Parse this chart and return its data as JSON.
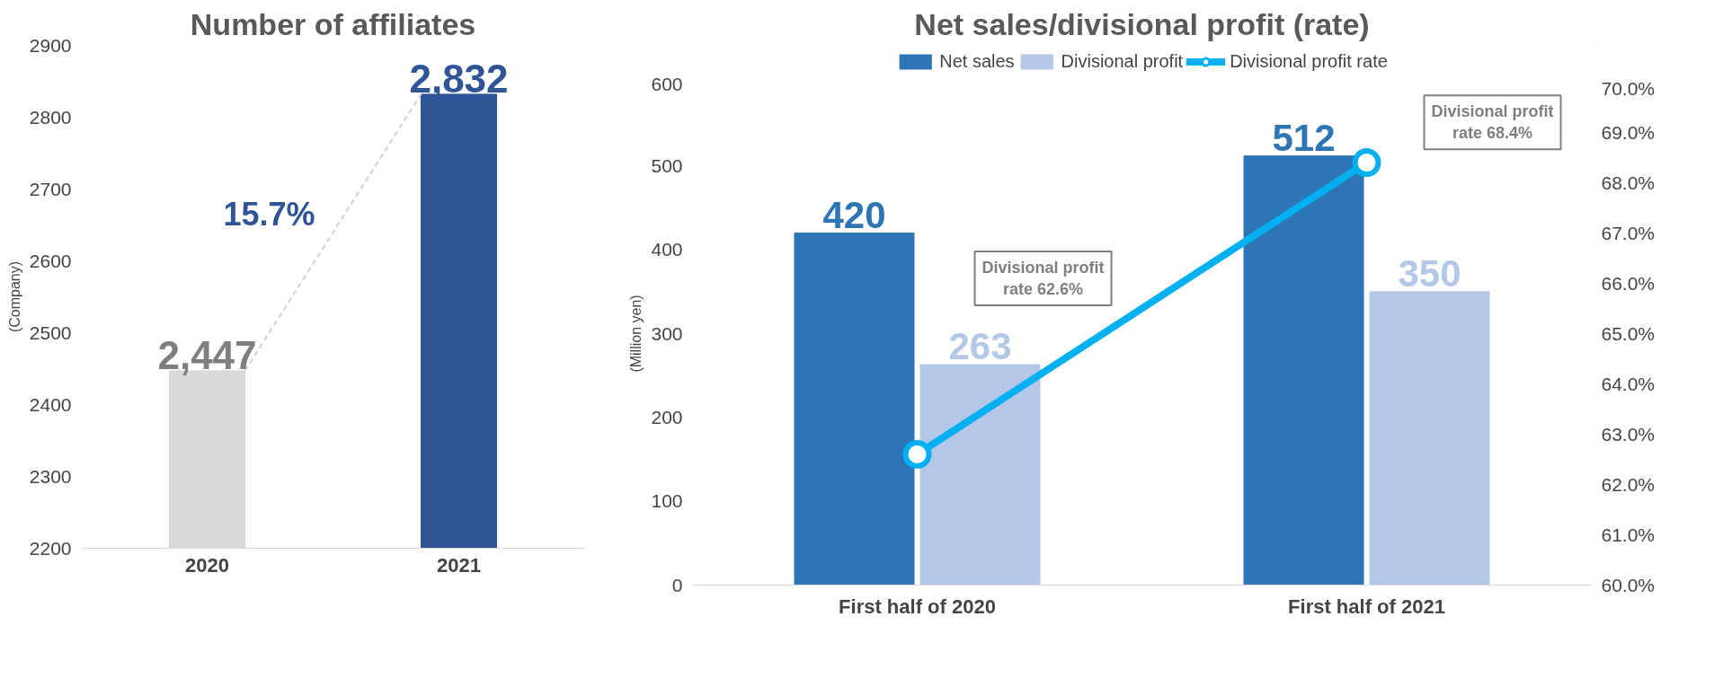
{
  "chart_data": [
    {
      "type": "bar",
      "title": "Number of affiliates",
      "ylabel": "(Company)",
      "categories": [
        "2020",
        "2021"
      ],
      "values": [
        2447,
        2832
      ],
      "colors": [
        "#d9d9d9",
        "#2f5597"
      ],
      "value_labels": [
        "2,447",
        "2,832"
      ],
      "ylim": [
        2200,
        2900
      ],
      "yticks": [
        2200,
        2300,
        2400,
        2500,
        2600,
        2700,
        2800,
        2900
      ],
      "annotations": [
        "15.7%"
      ],
      "grid": false,
      "legend": false
    },
    {
      "type": "bar",
      "title": "Net sales/divisional profit (rate)",
      "ylabel": "(Million yen)",
      "categories": [
        "First half of 2020",
        "First half of 2021"
      ],
      "series": [
        {
          "name": "Net sales",
          "color": "#2e75b6",
          "values": [
            420,
            512
          ],
          "value_labels": [
            "420",
            "512"
          ]
        },
        {
          "name": "Divisional profit",
          "color": "#b4c7e7",
          "values": [
            263,
            350
          ],
          "value_labels": [
            "263",
            "350"
          ]
        },
        {
          "name": "Divisional profit rate",
          "color": "#00b0f0",
          "type": "line",
          "axis": "y2",
          "marker": "circle",
          "values": [
            62.6,
            68.4
          ]
        }
      ],
      "ylim": [
        0,
        600
      ],
      "yticks": [
        0,
        100,
        200,
        300,
        400,
        500,
        600
      ],
      "y2lim": [
        60,
        70
      ],
      "y2ticks": [
        {
          "value": 60,
          "label": "60.0%"
        },
        {
          "value": 61,
          "label": "61.0%"
        },
        {
          "value": 62,
          "label": "62.0%"
        },
        {
          "value": 63,
          "label": "63.0%"
        },
        {
          "value": 64,
          "label": "64.0%"
        },
        {
          "value": 65,
          "label": "65.0%"
        },
        {
          "value": 66,
          "label": "66.0%"
        },
        {
          "value": 67,
          "label": "67.0%"
        },
        {
          "value": 68,
          "label": "68.0%"
        },
        {
          "value": 69,
          "label": "69.0%"
        },
        {
          "value": 70,
          "label": "70.0%"
        }
      ],
      "annotations": [
        "Divisional profit\nrate 62.6%",
        "Divisional profit\nrate 68.4%"
      ],
      "grid": false,
      "legend": "top"
    }
  ]
}
